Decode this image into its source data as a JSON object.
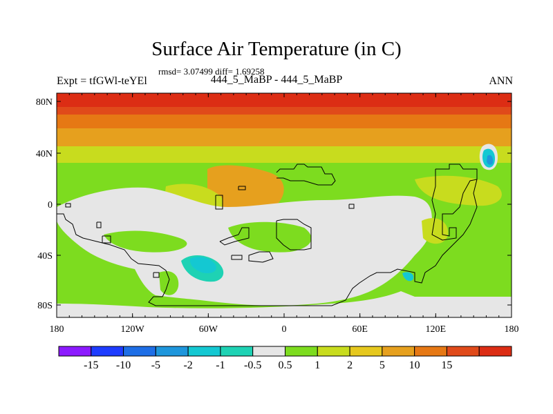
{
  "header": {
    "title": "Surface Air Temperature (in C)",
    "stats": "rmsd= 3.07499 diff= 1.69258",
    "experiment": "Expt = tfGWl-teYEl",
    "comparison": "444_5_MaBP - 444_5_MaBP",
    "season": "ANN"
  },
  "map": {
    "lat_ticks": [
      "80N",
      "40N",
      "0",
      "40S",
      "80S"
    ],
    "lon_ticks": [
      "180",
      "120W",
      "60W",
      "0",
      "60E",
      "120E",
      "180"
    ]
  },
  "colorbar": {
    "colors": [
      "#8c1aff",
      "#1e3cff",
      "#1e6ee6",
      "#1e96dc",
      "#14c8d2",
      "#1ed2b4",
      "#e6e6e6",
      "#7ddc1f",
      "#c8dc1e",
      "#e6c81e",
      "#e6a01e",
      "#e67814",
      "#e04a1a",
      "#dc2d14"
    ],
    "labels": [
      "-15",
      "-10",
      "-5",
      "-2",
      "-1",
      "-0.5",
      "0.5",
      "1",
      "2",
      "5",
      "10",
      "15"
    ]
  }
}
